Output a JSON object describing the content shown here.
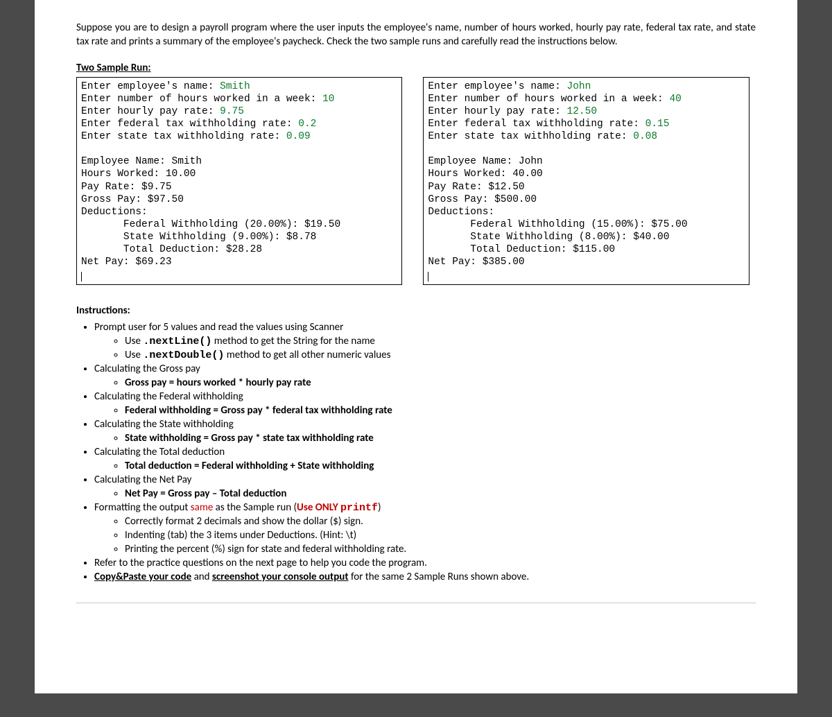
{
  "intro": "Suppose you are to design a payroll program where the user inputs the employee's name, number of hours worked, hourly pay rate, federal tax rate, and state tax rate and prints a summary of the employee's paycheck. Check the two sample runs and carefully read the instructions below.",
  "sample_header": "Two Sample Run",
  "samples": {
    "left": {
      "p_name": "Enter employee's name: ",
      "v_name": "Smith",
      "p_hours": "Enter number of hours worked in a week: ",
      "v_hours": "10",
      "p_rate": "Enter hourly pay rate: ",
      "v_rate": "9.75",
      "p_fed": "Enter federal tax withholding rate: ",
      "v_fed": "0.2",
      "p_state": "Enter state tax withholding rate: ",
      "v_state": "0.09",
      "out_name": "Employee Name: Smith",
      "out_hours": "Hours Worked: 10.00",
      "out_rate": "Pay Rate: $9.75",
      "out_gross": "Gross Pay: $97.50",
      "out_ded": "Deductions:",
      "out_fed": "       Federal Withholding (20.00%): $19.50",
      "out_state": "       State Withholding (9.00%): $8.78",
      "out_total": "       Total Deduction: $28.28",
      "out_net": "Net Pay: $69.23"
    },
    "right": {
      "p_name": "Enter employee's name: ",
      "v_name": "John",
      "p_hours": "Enter number of hours worked in a week: ",
      "v_hours": "40",
      "p_rate": "Enter hourly pay rate: ",
      "v_rate": "12.50",
      "p_fed": "Enter federal tax withholding rate: ",
      "v_fed": "0.15",
      "p_state": "Enter state tax withholding rate: ",
      "v_state": "0.08",
      "out_name": "Employee Name: John",
      "out_hours": "Hours Worked: 40.00",
      "out_rate": "Pay Rate: $12.50",
      "out_gross": "Gross Pay: $500.00",
      "out_ded": "Deductions:",
      "out_fed": "       Federal Withholding (15.00%): $75.00",
      "out_state": "       State Withholding (8.00%): $40.00",
      "out_total": "       Total Deduction: $115.00",
      "out_net": "Net Pay: $385.00"
    }
  },
  "instructions_header": "Instructions:",
  "instr": {
    "i1": "Prompt user for 5 values and read the values using Scanner",
    "i1a_pre": "Use ",
    "i1a_code": ".nextLine()",
    "i1a_post": " method to get the String for the name",
    "i1b_pre": "Use ",
    "i1b_code": ".nextDouble()",
    "i1b_post": " method to get all other numeric values",
    "i2": "Calculating the Gross pay",
    "i2a": "Gross pay = hours worked * hourly pay rate",
    "i3": "Calculating the Federal withholding",
    "i3a": "Federal withholding = Gross pay * federal tax withholding rate",
    "i4": "Calculating the State withholding",
    "i4a": "State withholding = Gross pay * state tax withholding rate",
    "i5": "Calculating the Total deduction",
    "i5a": "Total deduction = Federal withholding + State withholding",
    "i6": "Calculating the Net Pay",
    "i6a": "Net Pay = Gross pay – Total deduction",
    "i7_pre": "Formatting the output ",
    "i7_same": "same",
    "i7_mid": " as the Sample run (",
    "i7_red": "Use ONLY ",
    "i7_code": "printf",
    "i7_post": ")",
    "i7a": "Correctly format 2 decimals and show the dollar ($) sign.",
    "i7b": "Indenting (tab) the 3 items under Deductions. (Hint: \\t)",
    "i7c": "Printing the percent (%) sign for state and federal withholding rate.",
    "i8": "Refer to the practice questions on the next page to help you code the program.",
    "i9_a": "Copy&Paste your code",
    "i9_mid": " and ",
    "i9_b": "screenshot your console output",
    "i9_post": " for the same 2 Sample Runs shown above."
  }
}
